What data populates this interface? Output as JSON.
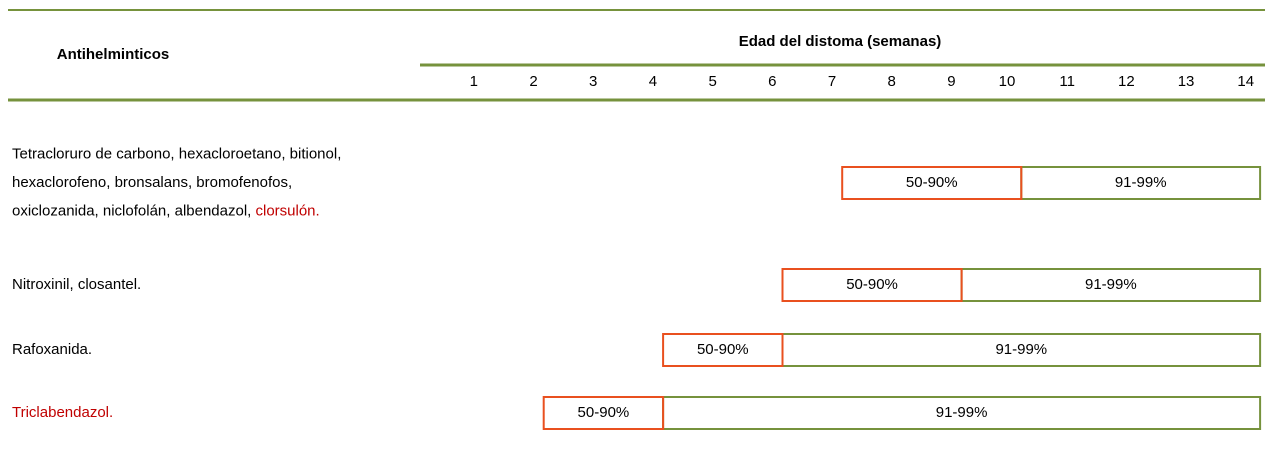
{
  "table": {
    "header": {
      "title": "Antihelminticos",
      "group_title": "Edad del distoma (semanas)"
    },
    "weeks": [
      1,
      2,
      3,
      4,
      5,
      6,
      7,
      8,
      9,
      10,
      11,
      12,
      13,
      14
    ],
    "rows": [
      {
        "lines": [
          [
            {
              "text": "Tetracloruro de carbono, hexacloroetano, bitionol,",
              "highlight": false
            }
          ],
          [
            {
              "text": "hexaclorofeno, bronsalans, bromofenofos,",
              "highlight": false
            }
          ],
          [
            {
              "text": "oxiclozanida, niclofolán, albendazol, ",
              "highlight": false
            },
            {
              "text": "clorsulón.",
              "highlight": true
            }
          ]
        ],
        "partial": {
          "label": "50-90%",
          "from_week": 8,
          "to_week": 10
        },
        "high": {
          "label": "91-99%",
          "from_week": 11,
          "to_week": 14
        }
      },
      {
        "lines": [
          [
            {
              "text": "Nitroxinil, closantel.",
              "highlight": false
            }
          ]
        ],
        "partial": {
          "label": "50-90%",
          "from_week": 7,
          "to_week": 9
        },
        "high": {
          "label": "91-99%",
          "from_week": 10,
          "to_week": 14
        }
      },
      {
        "lines": [
          [
            {
              "text": "Rafoxanida.",
              "highlight": false
            }
          ]
        ],
        "partial": {
          "label": "50-90%",
          "from_week": 5,
          "to_week": 6
        },
        "high": {
          "label": "91-99%",
          "from_week": 7,
          "to_week": 14
        }
      },
      {
        "lines": [
          [
            {
              "text": "Triclabendazol.",
              "highlight": true
            }
          ]
        ],
        "partial": {
          "label": "50-90%",
          "from_week": 3,
          "to_week": 4
        },
        "high": {
          "label": "91-99%",
          "from_week": 5,
          "to_week": 14
        }
      }
    ]
  }
}
